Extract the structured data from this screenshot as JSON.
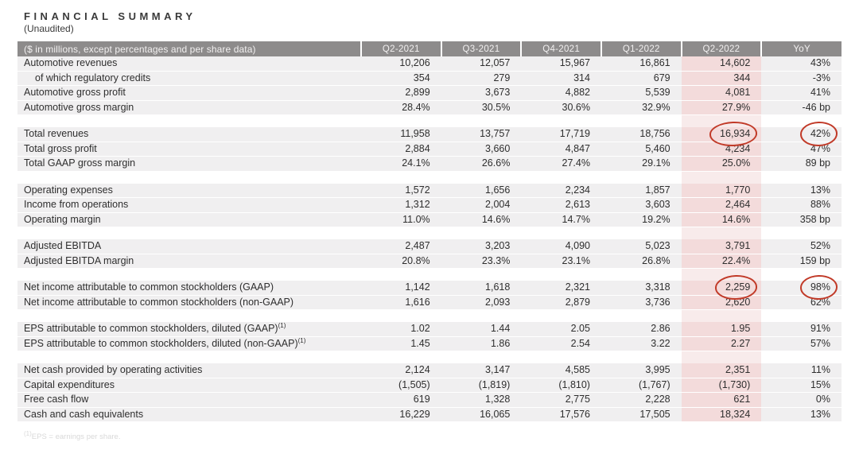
{
  "title": "FINANCIAL SUMMARY",
  "subtitle": "(Unaudited)",
  "footnote": {
    "sup": "(1)",
    "text": "EPS = earnings per share."
  },
  "colors": {
    "header_bg": "#8d8b8b",
    "header_text": "#f2f0f0",
    "row_bg": "#f0eff0",
    "highlight_cell": "#f3dbdb",
    "highlight_gap": "#f8ebeb",
    "circle": "#c13a28",
    "text": "#2e2e2e"
  },
  "table": {
    "columns": [
      "($ in millions, except percentages and per share data)",
      "Q2-2021",
      "Q3-2021",
      "Q4-2021",
      "Q1-2022",
      "Q2-2022",
      "YoY"
    ],
    "highlighted_quarter": "Q2-2022",
    "sections": [
      {
        "rows": [
          {
            "label": "Automotive revenues",
            "values": [
              "10,206",
              "12,057",
              "15,967",
              "16,861",
              "14,602",
              "43%"
            ]
          },
          {
            "label": "of which regulatory credits",
            "indent": true,
            "values": [
              "354",
              "279",
              "314",
              "679",
              "344",
              "-3%"
            ]
          },
          {
            "label": "Automotive gross profit",
            "values": [
              "2,899",
              "3,673",
              "4,882",
              "5,539",
              "4,081",
              "41%"
            ]
          },
          {
            "label": "Automotive gross margin",
            "values": [
              "28.4%",
              "30.5%",
              "30.6%",
              "32.9%",
              "27.9%",
              "-46 bp"
            ]
          }
        ]
      },
      {
        "rows": [
          {
            "label": "Total revenues",
            "values": [
              "11,958",
              "13,757",
              "17,719",
              "18,756",
              "16,934",
              "42%"
            ],
            "circled": [
              4,
              5
            ]
          },
          {
            "label": "Total gross profit",
            "values": [
              "2,884",
              "3,660",
              "4,847",
              "5,460",
              "4,234",
              "47%"
            ]
          },
          {
            "label": "Total GAAP gross margin",
            "values": [
              "24.1%",
              "26.6%",
              "27.4%",
              "29.1%",
              "25.0%",
              "89 bp"
            ]
          }
        ]
      },
      {
        "rows": [
          {
            "label": "Operating expenses",
            "values": [
              "1,572",
              "1,656",
              "2,234",
              "1,857",
              "1,770",
              "13%"
            ]
          },
          {
            "label": "Income from operations",
            "values": [
              "1,312",
              "2,004",
              "2,613",
              "3,603",
              "2,464",
              "88%"
            ]
          },
          {
            "label": "Operating margin",
            "values": [
              "11.0%",
              "14.6%",
              "14.7%",
              "19.2%",
              "14.6%",
              "358 bp"
            ]
          }
        ]
      },
      {
        "rows": [
          {
            "label": "Adjusted EBITDA",
            "values": [
              "2,487",
              "3,203",
              "4,090",
              "5,023",
              "3,791",
              "52%"
            ]
          },
          {
            "label": "Adjusted EBITDA margin",
            "values": [
              "20.8%",
              "23.3%",
              "23.1%",
              "26.8%",
              "22.4%",
              "159 bp"
            ]
          }
        ]
      },
      {
        "rows": [
          {
            "label": "Net income attributable to common stockholders (GAAP)",
            "values": [
              "1,142",
              "1,618",
              "2,321",
              "3,318",
              "2,259",
              "98%"
            ],
            "circled": [
              4,
              5
            ]
          },
          {
            "label": "Net income attributable to common stockholders (non-GAAP)",
            "values": [
              "1,616",
              "2,093",
              "2,879",
              "3,736",
              "2,620",
              "62%"
            ]
          }
        ]
      },
      {
        "rows": [
          {
            "label": "EPS attributable to common stockholders, diluted (GAAP)",
            "sup": "(1)",
            "values": [
              "1.02",
              "1.44",
              "2.05",
              "2.86",
              "1.95",
              "91%"
            ]
          },
          {
            "label": "EPS attributable to common stockholders, diluted (non-GAAP)",
            "sup": "(1)",
            "values": [
              "1.45",
              "1.86",
              "2.54",
              "3.22",
              "2.27",
              "57%"
            ]
          }
        ]
      },
      {
        "rows": [
          {
            "label": "Net cash provided by operating activities",
            "values": [
              "2,124",
              "3,147",
              "4,585",
              "3,995",
              "2,351",
              "11%"
            ]
          },
          {
            "label": "Capital expenditures",
            "values": [
              "(1,505)",
              "(1,819)",
              "(1,810)",
              "(1,767)",
              "(1,730)",
              "15%"
            ]
          },
          {
            "label": "Free cash flow",
            "values": [
              "619",
              "1,328",
              "2,775",
              "2,228",
              "621",
              "0%"
            ]
          },
          {
            "label": "Cash and cash equivalents",
            "values": [
              "16,229",
              "16,065",
              "17,576",
              "17,505",
              "18,324",
              "13%"
            ]
          }
        ]
      }
    ]
  }
}
